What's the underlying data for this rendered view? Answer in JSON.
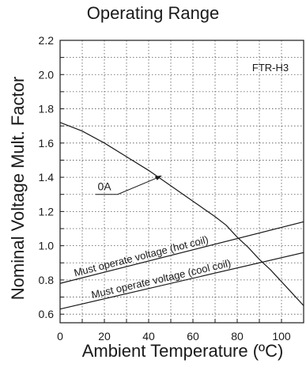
{
  "chart_data": {
    "type": "line",
    "title": "Operating Range",
    "xlabel": "Ambient Temperature (ºC)",
    "ylabel": "Nominal Voltage Mult. Factor",
    "xlim": [
      0,
      110
    ],
    "ylim": [
      0.55,
      2.2
    ],
    "x_ticks": [
      0,
      20,
      40,
      60,
      80,
      100
    ],
    "y_ticks": [
      0.6,
      0.8,
      1.0,
      1.2,
      1.4,
      1.6,
      1.8,
      2.0,
      2.2
    ],
    "y_tick_labels": [
      "0.6",
      "0.8",
      "1.0",
      "1.2",
      "1.4",
      "1.6",
      "1.8",
      "2.0",
      "2.2"
    ],
    "grid": "dotted",
    "model_label": "FTR-H3",
    "series": [
      {
        "name": "0A",
        "x": [
          0,
          10,
          20,
          30,
          40,
          50,
          60,
          70,
          75,
          80,
          85,
          90,
          95,
          100,
          105,
          110
        ],
        "y": [
          1.72,
          1.67,
          1.6,
          1.52,
          1.44,
          1.35,
          1.26,
          1.17,
          1.12,
          1.05,
          0.99,
          0.92,
          0.86,
          0.79,
          0.72,
          0.65
        ]
      },
      {
        "name": "Must operate voltage (hot coil)",
        "x": [
          0,
          110
        ],
        "y": [
          0.78,
          1.14
        ]
      },
      {
        "name": "Must operate voltage (cool coil)",
        "x": [
          0,
          110
        ],
        "y": [
          0.63,
          0.96
        ]
      }
    ]
  }
}
